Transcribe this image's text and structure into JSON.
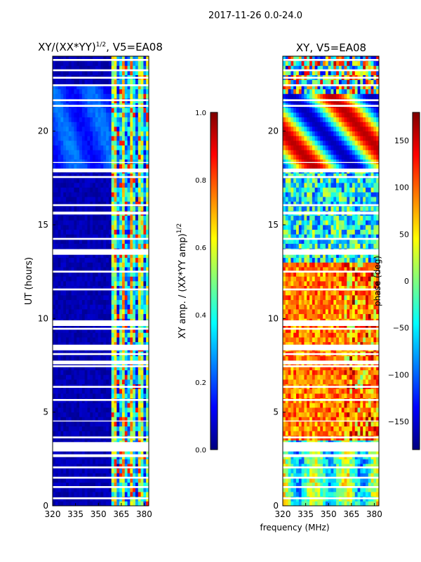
{
  "suptitle": "2017-11-26 0.0-24.0",
  "colors": {
    "jet": [
      "#00007f",
      "#0000ff",
      "#007fff",
      "#00ffff",
      "#7fff7f",
      "#ffff00",
      "#ff7f00",
      "#ff0000",
      "#7f0000"
    ]
  },
  "chart_data": [
    {
      "type": "heatmap",
      "title_main": "XY/(XX*YY)",
      "title_sup": "1/2",
      "title_rest": ", V5=EA08",
      "xlabel": "",
      "ylabel": "UT (hours)",
      "xlim": [
        320,
        383
      ],
      "ylim": [
        0,
        24
      ],
      "xticks": [
        320,
        335,
        350,
        365,
        380
      ],
      "yticks": [
        0,
        5,
        10,
        15,
        20
      ],
      "colorbar": {
        "label_main": "XY amp. / (XX*YY amp)",
        "label_sup": "1/2",
        "range": [
          0.0,
          1.0
        ],
        "ticks": [
          "0.0",
          "0.2",
          "0.4",
          "0.6",
          "0.8",
          "1.0"
        ]
      },
      "data_summary": "Low normalized amplitude (~0.0-0.1) below 359 MHz for most hours; elevated 0.2-0.9 between ~360-383 MHz; higher 0.1-0.3 across band from 18-22.5 UT; white gaps mark flagged time ranges.",
      "flagged_hours": [
        [
          0.35,
          0.45
        ],
        [
          0.95,
          1.05
        ],
        [
          1.45,
          1.55
        ],
        [
          2.0,
          2.1
        ],
        [
          2.6,
          2.75
        ],
        [
          2.9,
          3.4
        ],
        [
          3.6,
          3.7
        ],
        [
          4.5,
          4.55
        ],
        [
          5.6,
          5.7
        ],
        [
          6.3,
          6.4
        ],
        [
          7.4,
          7.5
        ],
        [
          7.55,
          7.75
        ],
        [
          8.05,
          8.15
        ],
        [
          8.3,
          8.6
        ],
        [
          9.4,
          9.5
        ],
        [
          9.6,
          9.9
        ],
        [
          11.5,
          11.6
        ],
        [
          12.45,
          12.55
        ],
        [
          13.4,
          13.7
        ],
        [
          14.2,
          14.3
        ],
        [
          15.55,
          15.7
        ],
        [
          16.0,
          16.1
        ],
        [
          17.5,
          17.6
        ],
        [
          17.8,
          18.0
        ],
        [
          18.3,
          18.35
        ],
        [
          21.3,
          21.4
        ],
        [
          21.6,
          21.7
        ],
        [
          22.4,
          22.5
        ],
        [
          22.8,
          22.9
        ],
        [
          23.2,
          23.3
        ],
        [
          23.75,
          23.85
        ]
      ]
    },
    {
      "type": "heatmap",
      "title_main": "XY, V5=EA08",
      "xlabel": "frequency (MHz)",
      "ylabel": "",
      "xlim": [
        320,
        383
      ],
      "ylim": [
        0,
        24
      ],
      "xticks": [
        320,
        335,
        350,
        365,
        380
      ],
      "yticks": [
        0,
        5,
        10,
        15,
        20
      ],
      "colorbar": {
        "label_main": "phase (deg)",
        "range": [
          -180,
          180
        ],
        "ticks": [
          "150",
          "100",
          "50",
          "0",
          "−50",
          "−100",
          "−150"
        ],
        "tick_values": [
          150,
          100,
          50,
          0,
          -50,
          -100,
          -150
        ]
      },
      "data_summary": "Phase mostly +50 to +150 deg (yellow/orange/red) from 3.5-13 UT, mixed green/blue with scattered values 13-18 UT, strong blue/red structure 18-22 UT; flagged gaps shown white.",
      "flagged_hours": [
        [
          0.35,
          0.45
        ],
        [
          0.95,
          1.05
        ],
        [
          1.45,
          1.55
        ],
        [
          2.0,
          2.1
        ],
        [
          2.6,
          2.75
        ],
        [
          2.9,
          3.4
        ],
        [
          3.6,
          3.7
        ],
        [
          4.5,
          4.55
        ],
        [
          5.6,
          5.7
        ],
        [
          6.3,
          6.4
        ],
        [
          7.4,
          7.5
        ],
        [
          7.55,
          7.75
        ],
        [
          8.05,
          8.15
        ],
        [
          8.3,
          8.6
        ],
        [
          9.4,
          9.5
        ],
        [
          9.6,
          9.9
        ],
        [
          11.5,
          11.6
        ],
        [
          12.45,
          12.55
        ],
        [
          13.4,
          13.7
        ],
        [
          14.2,
          14.3
        ],
        [
          15.55,
          15.7
        ],
        [
          16.0,
          16.1
        ],
        [
          17.5,
          17.6
        ],
        [
          17.8,
          18.0
        ],
        [
          18.3,
          18.35
        ],
        [
          21.3,
          21.4
        ],
        [
          21.6,
          21.7
        ],
        [
          22.4,
          22.5
        ],
        [
          22.8,
          22.9
        ],
        [
          23.2,
          23.3
        ],
        [
          23.75,
          23.85
        ]
      ]
    }
  ]
}
